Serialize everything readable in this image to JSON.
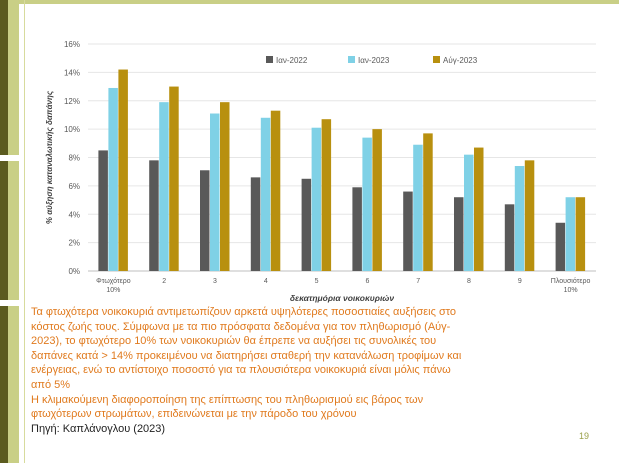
{
  "slide": {
    "page_number": "19",
    "caption_lines": [
      "Τα φτωχότερα νοικοκυριά αντιμετωπίζουν αρκετά υψηλότερες ποσοστιαίες αυξήσεις στο",
      "κόστος ζωής τους. Σύμφωνα με τα πιο πρόσφατα δεδομένα για τον πληθωρισμό (Αύγ-",
      "2023), το φτωχότερο 10% των νοικοκυριών θα έπρεπε να αυξήσει τις συνολικές του",
      "δαπάνες κατά > 14% προκειμένου να διατηρήσει σταθερή την κατανάλωση τροφίμων και",
      "ενέργειας, ενώ το αντίστοιχο ποσοστό για τα πλουσιότερα νοικοκυριά είναι μόλις πάνω",
      "από 5%",
      "Η κλιμακούμενη διαφοροποίηση της επίπτωσης του πληθωρισμού εις βάρος των",
      "φτωχότερων στρωμάτων, επιδεινώνεται με την πάροδο του χρόνου"
    ],
    "source": "Πηγή: Καπλάνογλου (2023)",
    "colors": {
      "caption_text": "#e07a1e",
      "accent": "#c9cf86",
      "accent_dark": "#5b5b1f"
    }
  },
  "chart_data": {
    "type": "bar",
    "ylabel": "% αύξηση καταναλωτικής δαπάνης",
    "xlabel": "δεκατημόρια νοικοκυριών",
    "ylim": [
      0,
      16
    ],
    "yticks": [
      "0%",
      "2%",
      "4%",
      "6%",
      "8%",
      "10%",
      "12%",
      "14%",
      "16%"
    ],
    "categories": [
      [
        "Φτωχότερο",
        "10%"
      ],
      [
        "2"
      ],
      [
        "3"
      ],
      [
        "4"
      ],
      [
        "5"
      ],
      [
        "6"
      ],
      [
        "7"
      ],
      [
        "8"
      ],
      [
        "9"
      ],
      [
        "Πλουσιότερο",
        "10%"
      ]
    ],
    "series": [
      {
        "name": "Ιαν-2022",
        "color": "#595959",
        "values": [
          8.5,
          7.8,
          7.1,
          6.6,
          6.5,
          5.9,
          5.6,
          5.2,
          4.7,
          3.4
        ]
      },
      {
        "name": "Ιαν-2023",
        "color": "#7fd1e6",
        "values": [
          12.9,
          11.9,
          11.1,
          10.8,
          10.1,
          9.4,
          8.9,
          8.2,
          7.4,
          5.2
        ]
      },
      {
        "name": "Αύγ-2023",
        "color": "#b8900f",
        "values": [
          14.2,
          13.0,
          11.9,
          11.3,
          10.7,
          10.0,
          9.7,
          8.7,
          7.8,
          5.2
        ]
      }
    ],
    "legend_position": "top",
    "grid": true
  }
}
